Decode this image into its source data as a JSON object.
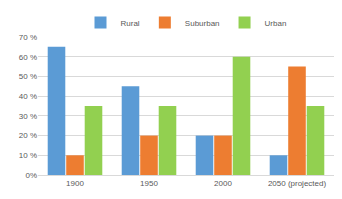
{
  "chart_data": {
    "type": "bar",
    "categories": [
      "1900",
      "1950",
      "2000",
      "2050 (projected)"
    ],
    "series": [
      {
        "name": "Rural",
        "color": "#5b9bd5",
        "values": [
          65,
          45,
          20,
          10
        ]
      },
      {
        "name": "Suburban",
        "color": "#ed7d31",
        "values": [
          10,
          20,
          20,
          55
        ]
      },
      {
        "name": "Urban",
        "color": "#92d050",
        "values": [
          35,
          35,
          60,
          35
        ]
      }
    ],
    "ylim": [
      0,
      70
    ],
    "yticks": [
      {
        "value": 0,
        "label": "0%"
      },
      {
        "value": 10,
        "label": "10 %"
      },
      {
        "value": 20,
        "label": "20 %"
      },
      {
        "value": 30,
        "label": "30 %"
      },
      {
        "value": 40,
        "label": "40 %"
      },
      {
        "value": 50,
        "label": "50 %"
      },
      {
        "value": 60,
        "label": "60 %"
      },
      {
        "value": 70,
        "label": "70 %"
      }
    ],
    "grid": true,
    "legend": "top"
  }
}
